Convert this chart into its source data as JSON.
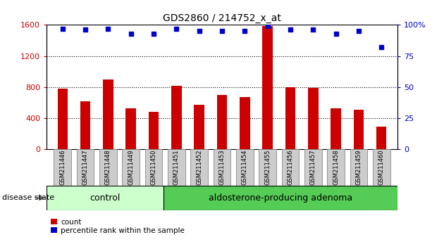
{
  "title": "GDS2860 / 214752_x_at",
  "samples": [
    "GSM211446",
    "GSM211447",
    "GSM211448",
    "GSM211449",
    "GSM211450",
    "GSM211451",
    "GSM211452",
    "GSM211453",
    "GSM211454",
    "GSM211455",
    "GSM211456",
    "GSM211457",
    "GSM211458",
    "GSM211459",
    "GSM211460"
  ],
  "counts": [
    780,
    620,
    900,
    530,
    480,
    820,
    575,
    700,
    670,
    1590,
    800,
    790,
    530,
    510,
    290
  ],
  "percentiles": [
    97,
    96,
    97,
    93,
    93,
    97,
    95,
    95,
    95,
    99,
    96,
    96,
    93,
    95,
    82
  ],
  "control_count": 5,
  "disease_state_label": "disease state",
  "group_labels": [
    "control",
    "aldosterone-producing adenoma"
  ],
  "bar_color": "#cc0000",
  "dot_color": "#0000cc",
  "left_axis_color": "#cc0000",
  "right_axis_color": "#0000cc",
  "ylim_left": [
    0,
    1600
  ],
  "ylim_right": [
    0,
    100
  ],
  "yticks_left": [
    0,
    400,
    800,
    1200,
    1600
  ],
  "yticks_right": [
    0,
    25,
    50,
    75,
    100
  ],
  "ytick_right_labels": [
    "0",
    "25",
    "50",
    "75",
    "100%"
  ],
  "grid_values": [
    400,
    800,
    1200
  ],
  "control_bg": "#ccffcc",
  "adenoma_bg": "#55cc55",
  "tick_bg": "#cccccc",
  "legend_labels": [
    "count",
    "percentile rank within the sample"
  ]
}
